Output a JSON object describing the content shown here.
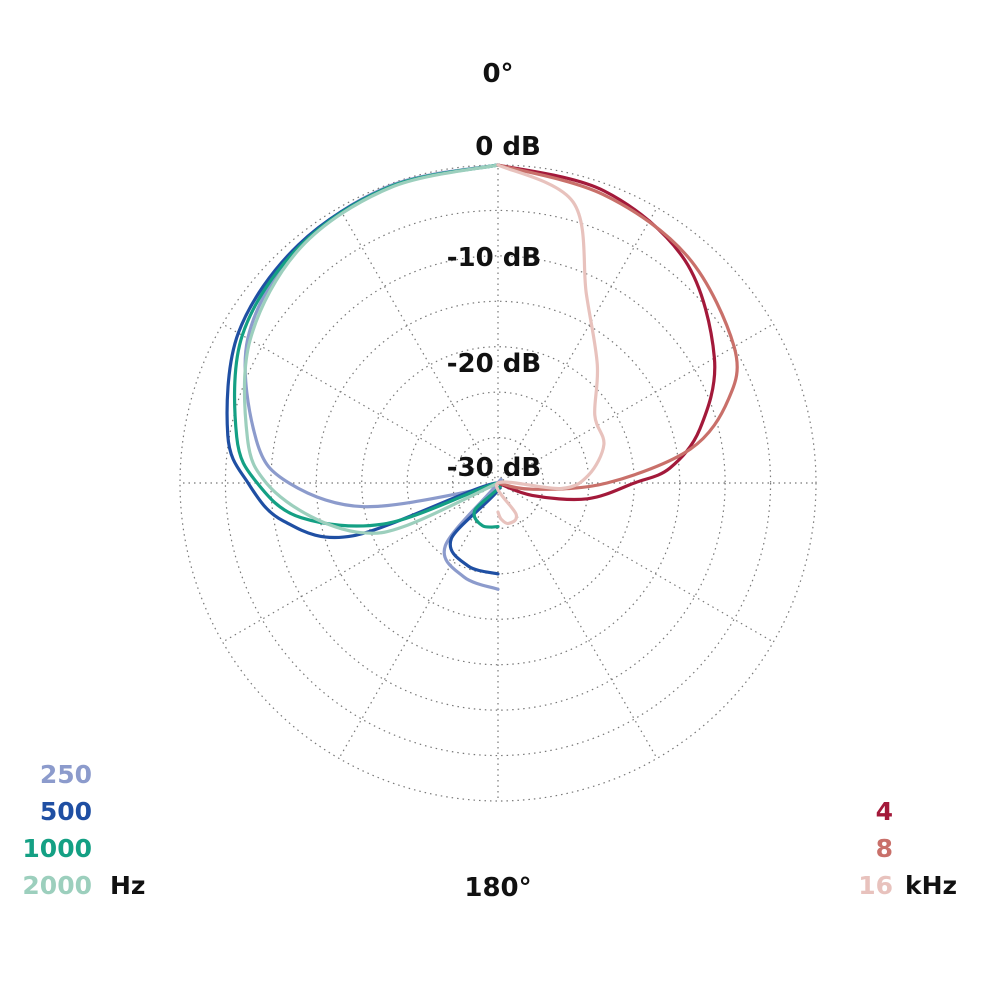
{
  "chart_data": {
    "type": "polar",
    "angle_labels": {
      "top": "0°",
      "bottom": "180°"
    },
    "radial_axis": {
      "range_db": [
        -35,
        0
      ],
      "rings_db": [
        0,
        -5,
        -10,
        -15,
        -20,
        -25,
        -30
      ]
    },
    "radial_labels": [
      "0 dB",
      "-10 dB",
      "-20 dB",
      "-30 dB"
    ],
    "angle_step_deg": 30,
    "grid": true,
    "legend_left": {
      "unit": "Hz",
      "entries": [
        {
          "label": "250",
          "color": "#8c9bcc"
        },
        {
          "label": "500",
          "color": "#1f4fa3"
        },
        {
          "label": "1000",
          "color": "#14a084"
        },
        {
          "label": "2000",
          "color": "#9ccfbd"
        }
      ]
    },
    "legend_right": {
      "unit": "kHz",
      "entries": [
        {
          "label": "4",
          "color": "#a3193a"
        },
        {
          "label": "8",
          "color": "#c9706a"
        },
        {
          "label": "16",
          "color": "#e8c2bd"
        }
      ]
    },
    "series": [
      {
        "name": "250",
        "side": "left",
        "color": "#8c9bcc",
        "points": [
          [
            0,
            0
          ],
          [
            20,
            -0.2
          ],
          [
            40,
            -1
          ],
          [
            60,
            -3.2
          ],
          [
            80,
            -8
          ],
          [
            90,
            -12
          ],
          [
            100,
            -20
          ],
          [
            110,
            -33
          ],
          [
            120,
            -35
          ],
          [
            140,
            -26
          ],
          [
            160,
            -24
          ],
          [
            180,
            -23.3
          ]
        ]
      },
      {
        "name": "500",
        "side": "left",
        "color": "#1f4fa3",
        "points": [
          [
            0,
            0
          ],
          [
            20,
            -0.3
          ],
          [
            40,
            -0.8
          ],
          [
            60,
            -2
          ],
          [
            80,
            -4.8
          ],
          [
            90,
            -7.5
          ],
          [
            100,
            -11
          ],
          [
            110,
            -18
          ],
          [
            120,
            -35
          ],
          [
            140,
            -27
          ],
          [
            160,
            -25.3
          ],
          [
            180,
            -25
          ]
        ]
      },
      {
        "name": "1000",
        "side": "left",
        "color": "#14a084",
        "points": [
          [
            0,
            0
          ],
          [
            20,
            -0.3
          ],
          [
            40,
            -1
          ],
          [
            60,
            -2.5
          ],
          [
            80,
            -5.8
          ],
          [
            90,
            -8.5
          ],
          [
            100,
            -13
          ],
          [
            110,
            -22
          ],
          [
            120,
            -35
          ],
          [
            140,
            -31
          ],
          [
            160,
            -30
          ],
          [
            180,
            -30.2
          ]
        ]
      },
      {
        "name": "2000",
        "side": "left",
        "color": "#9ccfbd",
        "points": [
          [
            0,
            0
          ],
          [
            20,
            -0.4
          ],
          [
            40,
            -1.2
          ],
          [
            60,
            -3.5
          ],
          [
            80,
            -7
          ],
          [
            90,
            -9.5
          ],
          [
            100,
            -14
          ],
          [
            110,
            -19
          ],
          [
            115,
            -24
          ],
          [
            120,
            -35
          ]
        ]
      },
      {
        "name": "4",
        "side": "right",
        "color": "#a3193a",
        "points": [
          [
            0,
            0
          ],
          [
            20,
            -0.8
          ],
          [
            40,
            -3
          ],
          [
            60,
            -7.5
          ],
          [
            75,
            -12
          ],
          [
            85,
            -16
          ],
          [
            90,
            -20
          ],
          [
            100,
            -25
          ],
          [
            110,
            -31
          ],
          [
            120,
            -35
          ]
        ]
      },
      {
        "name": "8",
        "side": "right",
        "color": "#c9706a",
        "points": [
          [
            0,
            0
          ],
          [
            20,
            -1.2
          ],
          [
            40,
            -2.5
          ],
          [
            60,
            -5
          ],
          [
            70,
            -8
          ],
          [
            80,
            -13.5
          ],
          [
            90,
            -23
          ],
          [
            100,
            -31
          ],
          [
            110,
            -35
          ]
        ]
      },
      {
        "name": "16",
        "side": "right",
        "color": "#e8c2bd",
        "points": [
          [
            0,
            0
          ],
          [
            15,
            -3
          ],
          [
            25,
            -12
          ],
          [
            40,
            -18
          ],
          [
            55,
            -22
          ],
          [
            70,
            -22.6
          ],
          [
            85,
            -25
          ],
          [
            95,
            -28
          ],
          [
            110,
            -35
          ],
          [
            150,
            -31
          ],
          [
            165,
            -30.4
          ],
          [
            175,
            -31
          ],
          [
            180,
            -31.8
          ]
        ]
      }
    ]
  }
}
